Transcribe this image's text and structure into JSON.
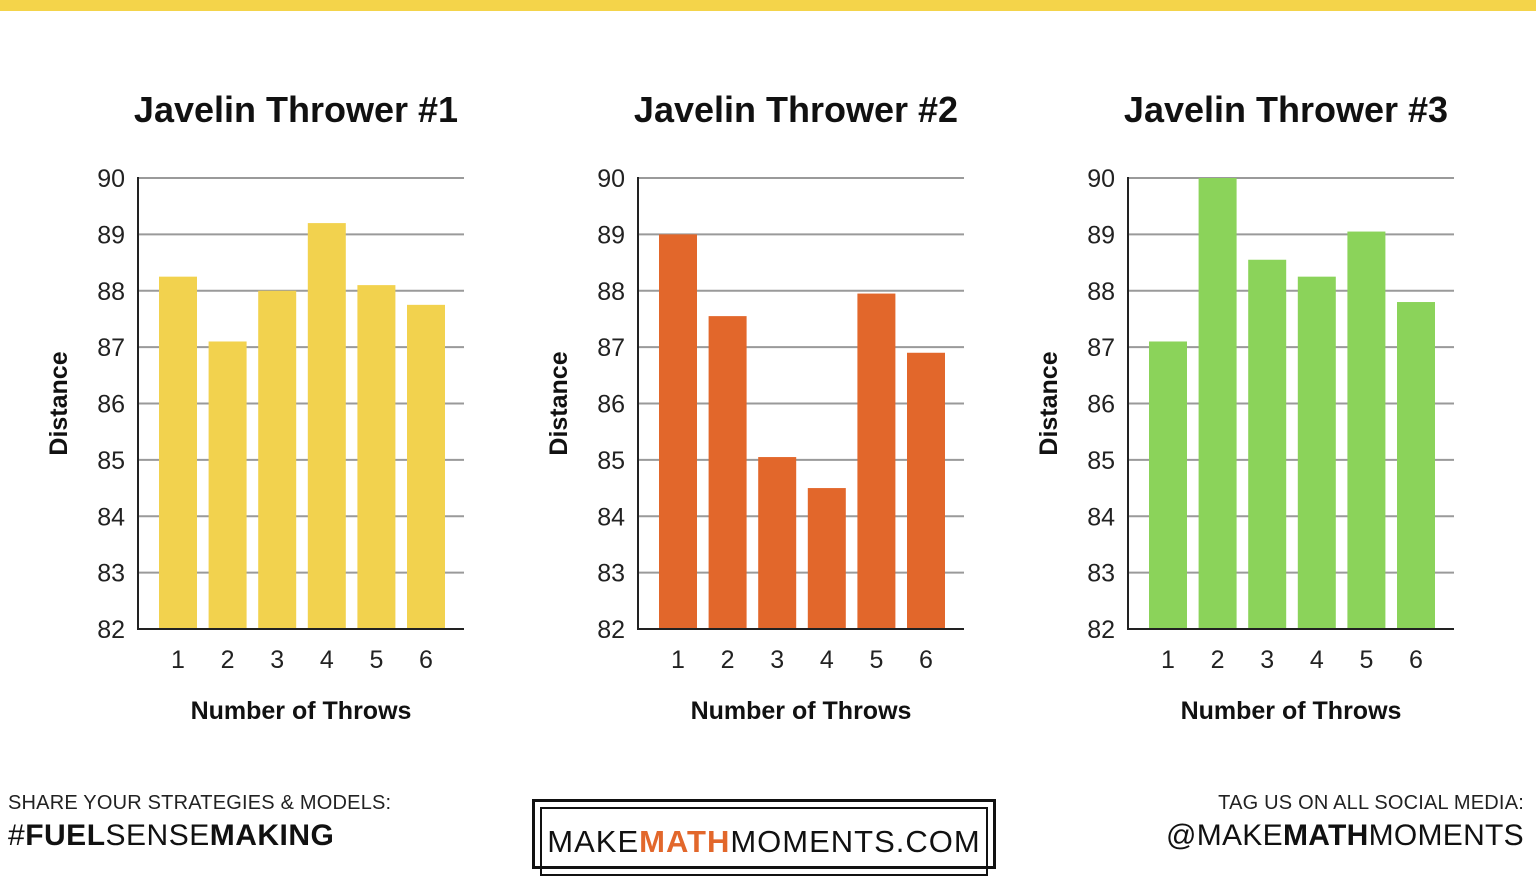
{
  "colors": {
    "top_bar": "#F4D44A",
    "grid": "#9a9a9a",
    "axis": "#222222",
    "accent": "#E2672B"
  },
  "chart_data": [
    {
      "type": "bar",
      "title": "Javelin Thrower #1",
      "xlabel": "Number of Throws",
      "ylabel": "Distance",
      "categories": [
        "1",
        "2",
        "3",
        "4",
        "5",
        "6"
      ],
      "values": [
        88.25,
        87.1,
        88.0,
        89.2,
        88.1,
        87.75
      ],
      "ylim": [
        82,
        90
      ],
      "yticks": [
        "82",
        "83",
        "84",
        "85",
        "86",
        "87",
        "88",
        "89",
        "90"
      ],
      "color": "#F2D24E",
      "grid": true,
      "legend": "none"
    },
    {
      "type": "bar",
      "title": "Javelin Thrower #2",
      "xlabel": "Number of Throws",
      "ylabel": "Distance",
      "categories": [
        "1",
        "2",
        "3",
        "4",
        "5",
        "6"
      ],
      "values": [
        89.0,
        87.55,
        85.05,
        84.5,
        87.95,
        86.9
      ],
      "ylim": [
        82,
        90
      ],
      "yticks": [
        "82",
        "83",
        "84",
        "85",
        "86",
        "87",
        "88",
        "89",
        "90"
      ],
      "color": "#E2672B",
      "grid": true,
      "legend": "none"
    },
    {
      "type": "bar",
      "title": "Javelin Thrower #3",
      "xlabel": "Number of Throws",
      "ylabel": "Distance",
      "categories": [
        "1",
        "2",
        "3",
        "4",
        "5",
        "6"
      ],
      "values": [
        87.1,
        90.0,
        88.55,
        88.25,
        89.05,
        87.8
      ],
      "ylim": [
        82,
        90
      ],
      "yticks": [
        "82",
        "83",
        "84",
        "85",
        "86",
        "87",
        "88",
        "89",
        "90"
      ],
      "color": "#8BD35A",
      "grid": true,
      "legend": "none"
    }
  ],
  "footer": {
    "share_label": "SHARE YOUR STRATEGIES & MODELS:",
    "hashtag_hash": "#",
    "hashtag_fuel": "FUEL",
    "hashtag_sense": "SENSE",
    "hashtag_making": "MAKING",
    "logo_make": "MAKE",
    "logo_math": "MATH",
    "logo_moments": "MOMENTS",
    "logo_com": ".COM",
    "tag_label": "TAG US ON ALL SOCIAL MEDIA:",
    "handle_at": "@MAKE",
    "handle_math": "MATH",
    "handle_moments": "MOMENTS"
  }
}
